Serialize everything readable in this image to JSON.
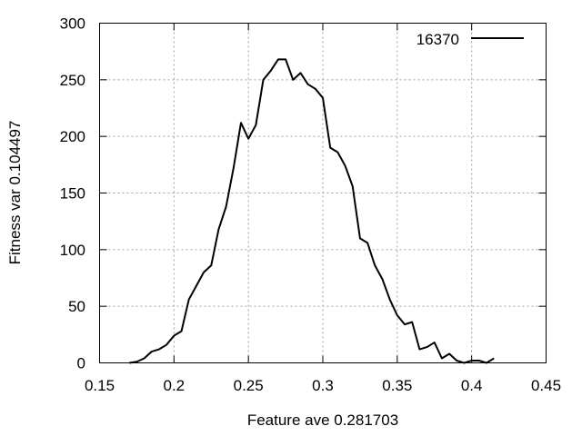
{
  "chart_data": {
    "type": "line",
    "xlabel": "Feature ave 0.281703",
    "ylabel": "Fitness var 0.104497",
    "xlim": [
      0.15,
      0.45
    ],
    "ylim": [
      0,
      300
    ],
    "xticks": [
      0.15,
      0.2,
      0.25,
      0.3,
      0.35,
      0.4,
      0.45
    ],
    "xtick_labels": [
      "0.15",
      "0.2",
      "0.25",
      "0.3",
      "0.35",
      "0.4",
      "0.45"
    ],
    "yticks": [
      0,
      50,
      100,
      150,
      200,
      250,
      300
    ],
    "ytick_labels": [
      "0",
      "50",
      "100",
      "150",
      "200",
      "250",
      "300"
    ],
    "grid": true,
    "legend": {
      "position": "top-right"
    },
    "series": [
      {
        "name": "16370",
        "color": "#000000",
        "x": [
          0.17,
          0.175,
          0.18,
          0.185,
          0.19,
          0.195,
          0.2,
          0.205,
          0.21,
          0.215,
          0.22,
          0.225,
          0.23,
          0.235,
          0.24,
          0.245,
          0.25,
          0.255,
          0.26,
          0.265,
          0.27,
          0.275,
          0.28,
          0.285,
          0.29,
          0.295,
          0.3,
          0.305,
          0.31,
          0.315,
          0.32,
          0.325,
          0.33,
          0.335,
          0.34,
          0.345,
          0.35,
          0.355,
          0.36,
          0.365,
          0.37,
          0.375,
          0.38,
          0.385,
          0.39,
          0.395,
          0.4,
          0.405,
          0.41,
          0.415
        ],
        "y": [
          0,
          1,
          4,
          10,
          12,
          16,
          24,
          28,
          56,
          68,
          80,
          86,
          118,
          138,
          172,
          212,
          198,
          210,
          250,
          258,
          268,
          268,
          250,
          256,
          246,
          242,
          234,
          190,
          186,
          174,
          156,
          110,
          106,
          86,
          74,
          56,
          42,
          34,
          36,
          12,
          14,
          18,
          4,
          8,
          2,
          0,
          2,
          2,
          0,
          4
        ]
      }
    ]
  }
}
